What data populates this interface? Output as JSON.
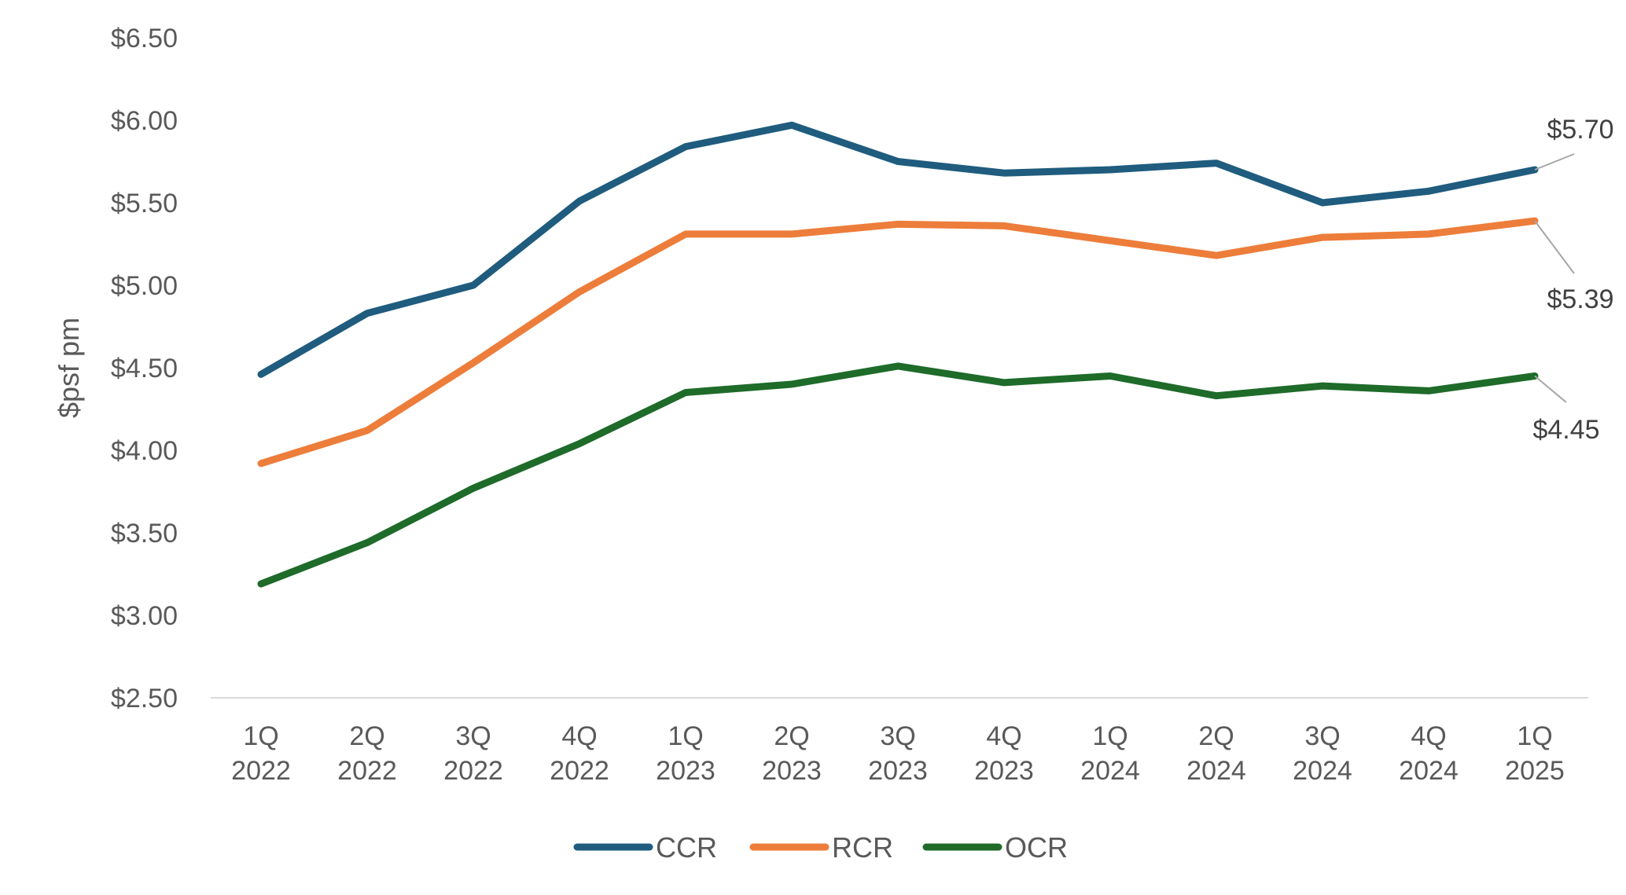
{
  "chart_data": {
    "type": "line",
    "title": "",
    "xlabel": "",
    "ylabel": "$psf pm",
    "x": [
      [
        "1Q",
        "2022"
      ],
      [
        "2Q",
        "2022"
      ],
      [
        "3Q",
        "2022"
      ],
      [
        "4Q",
        "2022"
      ],
      [
        "1Q",
        "2023"
      ],
      [
        "2Q",
        "2023"
      ],
      [
        "3Q",
        "2023"
      ],
      [
        "4Q",
        "2023"
      ],
      [
        "1Q",
        "2024"
      ],
      [
        "2Q",
        "2024"
      ],
      [
        "3Q",
        "2024"
      ],
      [
        "4Q",
        "2024"
      ],
      [
        "1Q",
        "2025"
      ]
    ],
    "ylim": [
      2.5,
      6.5
    ],
    "yticks": [
      "$2.50",
      "$3.00",
      "$3.50",
      "$4.00",
      "$4.50",
      "$5.00",
      "$5.50",
      "$6.00",
      "$6.50"
    ],
    "grid": false,
    "legend_position": "bottom",
    "series": [
      {
        "name": "CCR",
        "color": "#1F5C7E",
        "values": [
          4.46,
          4.83,
          5.0,
          5.51,
          5.84,
          5.97,
          5.75,
          5.68,
          5.7,
          5.74,
          5.5,
          5.57,
          5.7
        ],
        "end_label": "$5.70"
      },
      {
        "name": "RCR",
        "color": "#ED7D3A",
        "values": [
          3.92,
          4.12,
          4.53,
          4.96,
          5.31,
          5.31,
          5.37,
          5.36,
          5.27,
          5.18,
          5.29,
          5.31,
          5.39
        ],
        "end_label": "$5.39"
      },
      {
        "name": "OCR",
        "color": "#1E6B2A",
        "values": [
          3.19,
          3.44,
          3.77,
          4.04,
          4.35,
          4.4,
          4.51,
          4.41,
          4.45,
          4.33,
          4.39,
          4.36,
          4.45
        ],
        "end_label": "$4.45"
      }
    ]
  }
}
